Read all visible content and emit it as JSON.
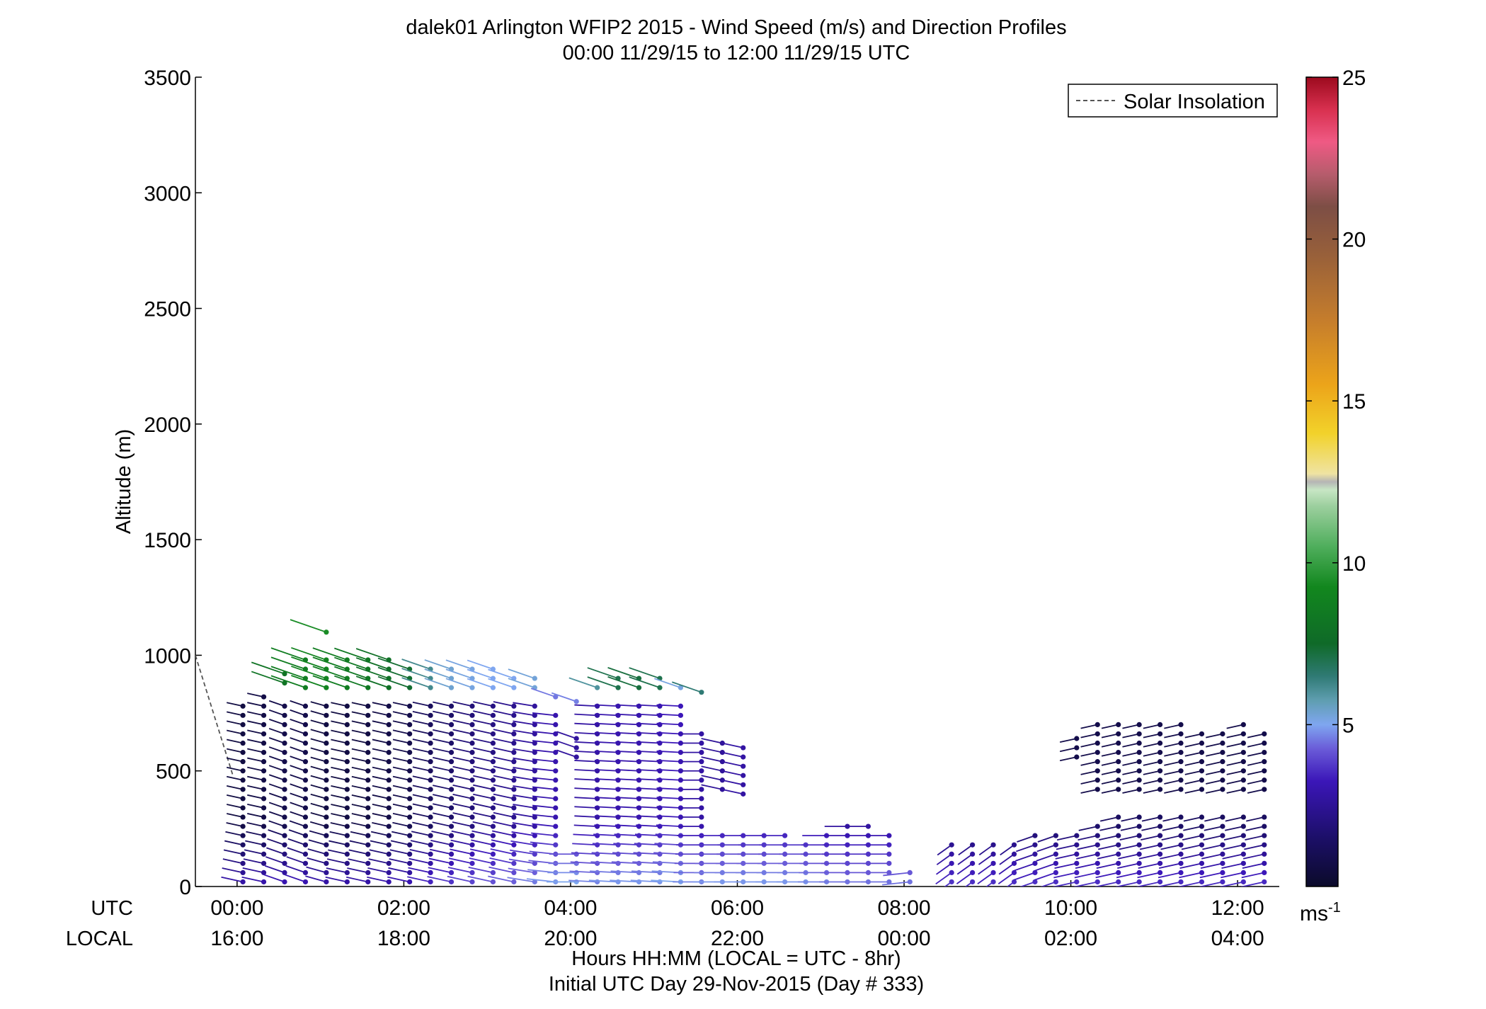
{
  "chart_data": {
    "type": "scatter",
    "title": "dalek01 Arlington WFIP2 2015 - Wind Speed (m/s) and Direction Profiles",
    "subtitle": "00:00 11/29/15 to 12:00 11/29/15  UTC",
    "ylabel": "Altitude (m)",
    "xlabel": "Hours HH:MM  (LOCAL = UTC - 8hr)",
    "xlabel2": "Initial UTC Day 29-Nov-2015 (Day # 333)",
    "utc_row_label": "UTC",
    "local_row_label": "LOCAL",
    "xlim_hours": [
      -0.5,
      12.5
    ],
    "ylim": [
      0,
      3500
    ],
    "yticks": [
      0,
      500,
      1000,
      1500,
      2000,
      2500,
      3000,
      3500
    ],
    "ytick_labels": [
      "0",
      "500",
      "1000",
      "1500",
      "2000",
      "2500",
      "3000",
      "3500"
    ],
    "xticks_hours": [
      0,
      2,
      4,
      6,
      8,
      10,
      12
    ],
    "utc_tick_labels": [
      "00:00",
      "02:00",
      "04:00",
      "06:00",
      "08:00",
      "10:00",
      "12:00"
    ],
    "local_tick_labels": [
      "16:00",
      "18:00",
      "20:00",
      "22:00",
      "00:00",
      "02:00",
      "04:00"
    ],
    "legend": {
      "label": "Solar Insolation",
      "placement": "top-right"
    },
    "colorbar": {
      "min": 0,
      "max": 25,
      "ticks": [
        5,
        10,
        15,
        20,
        25
      ],
      "tick_labels": [
        "5",
        "10",
        "15",
        "20",
        "25"
      ],
      "unit_label": "ms",
      "unit_exponent": "-1"
    },
    "solar_insolation_line": {
      "x_hours": [
        -0.5,
        -0.05
      ],
      "y_m": [
        1000,
        480
      ]
    },
    "wind_profiles": [
      {
        "t": 0.07,
        "top": 780,
        "ws": 0.6,
        "dir": 250
      },
      {
        "t": 0.32,
        "top": 820,
        "ws": 0.7,
        "dir": 250
      },
      {
        "t": 0.57,
        "top": 790,
        "ws": 0.8,
        "dir": 240
      },
      {
        "t": 0.57,
        "bottom": 880,
        "top": 940,
        "ws": 8,
        "dir": 240
      },
      {
        "t": 0.82,
        "top": 790,
        "ws": 0.8,
        "dir": 240
      },
      {
        "t": 0.82,
        "bottom": 860,
        "top": 980,
        "ws": 8.5,
        "dir": 240
      },
      {
        "t": 1.07,
        "top": 790,
        "ws": 0.6,
        "dir": 245
      },
      {
        "t": 1.07,
        "bottom": 860,
        "top": 980,
        "ws": 8.8,
        "dir": 240
      },
      {
        "t": 1.07,
        "bottom": 1100,
        "top": 1100,
        "ws": 9.2,
        "dir": 240
      },
      {
        "t": 1.32,
        "top": 780,
        "ws": 0.6,
        "dir": 250
      },
      {
        "t": 1.32,
        "bottom": 860,
        "top": 980,
        "ws": 8.5,
        "dir": 240
      },
      {
        "t": 1.57,
        "top": 790,
        "ws": 0.6,
        "dir": 250
      },
      {
        "t": 1.57,
        "bottom": 860,
        "top": 980,
        "ws": 8.2,
        "dir": 240
      },
      {
        "t": 1.82,
        "top": 790,
        "ws": 0.7,
        "dir": 250
      },
      {
        "t": 1.82,
        "bottom": 860,
        "top": 980,
        "ws": 7.8,
        "dir": 240
      },
      {
        "t": 2.07,
        "top": 800,
        "ws": 0.8,
        "dir": 250
      },
      {
        "t": 2.07,
        "bottom": 860,
        "top": 960,
        "ws": 7.4,
        "dir": 240
      },
      {
        "t": 2.32,
        "top": 800,
        "ws": 1.2,
        "dir": 250
      },
      {
        "t": 2.32,
        "bottom": 860,
        "top": 940,
        "ws": 6.2,
        "dir": 240
      },
      {
        "t": 2.57,
        "top": 800,
        "ws": 1.5,
        "dir": 250
      },
      {
        "t": 2.57,
        "bottom": 860,
        "top": 940,
        "ws": 5.4,
        "dir": 240
      },
      {
        "t": 2.82,
        "top": 800,
        "ws": 1.8,
        "dir": 250
      },
      {
        "t": 2.82,
        "bottom": 860,
        "top": 940,
        "ws": 5.2,
        "dir": 240
      },
      {
        "t": 3.07,
        "top": 800,
        "ws": 2.0,
        "dir": 250
      },
      {
        "t": 3.07,
        "bottom": 860,
        "top": 940,
        "ws": 5.0,
        "dir": 240
      },
      {
        "t": 3.32,
        "top": 800,
        "ws": 2.2,
        "dir": 250
      },
      {
        "t": 3.32,
        "bottom": 860,
        "top": 920,
        "ws": 5.0,
        "dir": 240
      },
      {
        "t": 3.57,
        "top": 800,
        "ws": 2.5,
        "dir": 255
      },
      {
        "t": 3.57,
        "bottom": 860,
        "top": 900,
        "ws": 5.3,
        "dir": 240
      },
      {
        "t": 3.82,
        "top": 760,
        "ws": 2.8,
        "dir": 260
      },
      {
        "t": 3.82,
        "bottom": 820,
        "top": 840,
        "ws": 4.5,
        "dir": 240
      },
      {
        "t": 4.07,
        "top": 160,
        "ws": 3.0,
        "dir": 270
      },
      {
        "t": 4.07,
        "bottom": 560,
        "top": 640,
        "ws": 2.5,
        "dir": 240
      },
      {
        "t": 4.07,
        "bottom": 800,
        "top": 820,
        "ws": 4.6,
        "dir": 240
      },
      {
        "t": 4.32,
        "top": 800,
        "ws": 2.6,
        "dir": 265
      },
      {
        "t": 4.32,
        "bottom": 860,
        "top": 880,
        "ws": 6.0,
        "dir": 240
      },
      {
        "t": 4.57,
        "top": 800,
        "ws": 2.8,
        "dir": 265
      },
      {
        "t": 4.57,
        "bottom": 860,
        "top": 900,
        "ws": 7.0,
        "dir": 240
      },
      {
        "t": 4.82,
        "top": 790,
        "ws": 2.8,
        "dir": 265
      },
      {
        "t": 4.82,
        "bottom": 860,
        "top": 900,
        "ws": 7.2,
        "dir": 240
      },
      {
        "t": 5.07,
        "top": 790,
        "ws": 2.8,
        "dir": 265
      },
      {
        "t": 5.07,
        "bottom": 860,
        "top": 900,
        "ws": 7.0,
        "dir": 240
      },
      {
        "t": 5.32,
        "top": 790,
        "ws": 3.0,
        "dir": 265
      },
      {
        "t": 5.32,
        "bottom": 860,
        "top": 880,
        "ws": 5.2,
        "dir": 240
      },
      {
        "t": 5.57,
        "top": 660,
        "ws": 2.6,
        "dir": 270
      },
      {
        "t": 5.57,
        "bottom": 840,
        "top": 840,
        "ws": 6.5,
        "dir": 240
      },
      {
        "t": 5.82,
        "top": 240,
        "ws": 2.8,
        "dir": 270
      },
      {
        "t": 5.82,
        "bottom": 420,
        "top": 640,
        "ws": 2.4,
        "dir": 250
      },
      {
        "t": 6.07,
        "top": 240,
        "ws": 2.8,
        "dir": 270
      },
      {
        "t": 6.07,
        "bottom": 400,
        "top": 600,
        "ws": 2.6,
        "dir": 250
      },
      {
        "t": 6.32,
        "top": 240,
        "ws": 2.8,
        "dir": 270
      },
      {
        "t": 6.57,
        "top": 240,
        "ws": 2.8,
        "dir": 270
      },
      {
        "t": 6.82,
        "top": 180,
        "ws": 2.8,
        "dir": 270
      },
      {
        "t": 7.07,
        "top": 220,
        "ws": 2.6,
        "dir": 270
      },
      {
        "t": 7.32,
        "top": 280,
        "ws": 2.4,
        "dir": 270
      },
      {
        "t": 7.57,
        "top": 280,
        "ws": 2.4,
        "dir": 270
      },
      {
        "t": 7.82,
        "top": 220,
        "ws": 2.4,
        "dir": 270
      },
      {
        "t": 8.07,
        "top": 60,
        "ws": 2.4,
        "dir": 280
      },
      {
        "t": 8.57,
        "top": 200,
        "ws": 1.5,
        "dir": 320
      },
      {
        "t": 8.82,
        "top": 200,
        "ws": 1.4,
        "dir": 320
      },
      {
        "t": 9.07,
        "top": 200,
        "ws": 1.4,
        "dir": 320
      },
      {
        "t": 9.32,
        "top": 200,
        "ws": 1.4,
        "dir": 320
      },
      {
        "t": 9.57,
        "top": 240,
        "ws": 1.4,
        "dir": 300
      },
      {
        "t": 9.82,
        "top": 240,
        "ws": 1.4,
        "dir": 300
      },
      {
        "t": 10.07,
        "top": 240,
        "ws": 1.4,
        "dir": 290
      },
      {
        "t": 10.07,
        "bottom": 560,
        "top": 660,
        "ws": 0.8,
        "dir": 290
      },
      {
        "t": 10.32,
        "top": 280,
        "ws": 1.4,
        "dir": 290
      },
      {
        "t": 10.32,
        "bottom": 420,
        "top": 720,
        "ws": 0.8,
        "dir": 290
      },
      {
        "t": 10.57,
        "top": 300,
        "ws": 1.3,
        "dir": 290
      },
      {
        "t": 10.57,
        "bottom": 420,
        "top": 720,
        "ws": 0.8,
        "dir": 290
      },
      {
        "t": 10.82,
        "top": 300,
        "ws": 1.3,
        "dir": 290
      },
      {
        "t": 10.82,
        "bottom": 420,
        "top": 720,
        "ws": 0.8,
        "dir": 290
      },
      {
        "t": 11.07,
        "top": 300,
        "ws": 1.3,
        "dir": 290
      },
      {
        "t": 11.07,
        "bottom": 420,
        "top": 720,
        "ws": 0.8,
        "dir": 290
      },
      {
        "t": 11.32,
        "top": 300,
        "ws": 1.3,
        "dir": 290
      },
      {
        "t": 11.32,
        "bottom": 420,
        "top": 700,
        "ws": 0.8,
        "dir": 290
      },
      {
        "t": 11.57,
        "top": 300,
        "ws": 1.3,
        "dir": 290
      },
      {
        "t": 11.57,
        "bottom": 420,
        "top": 680,
        "ws": 0.8,
        "dir": 290
      },
      {
        "t": 11.82,
        "top": 300,
        "ws": 1.3,
        "dir": 290
      },
      {
        "t": 11.82,
        "bottom": 420,
        "top": 680,
        "ws": 0.8,
        "dir": 290
      },
      {
        "t": 12.07,
        "top": 300,
        "ws": 1.3,
        "dir": 290
      },
      {
        "t": 12.07,
        "bottom": 420,
        "top": 700,
        "ws": 0.8,
        "dir": 290
      },
      {
        "t": 12.32,
        "top": 300,
        "ws": 1.3,
        "dir": 290
      },
      {
        "t": 12.32,
        "bottom": 420,
        "top": 680,
        "ws": 0.8,
        "dir": 290
      }
    ]
  }
}
